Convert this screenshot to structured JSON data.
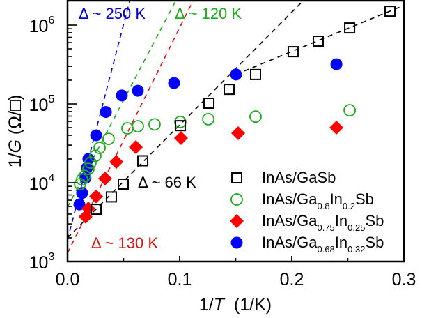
{
  "chart_data": {
    "type": "scatter",
    "title": "",
    "xlabel_prefix": "1/",
    "xlabel_var": "T",
    "xlabel_suffix": "  (1/K)",
    "ylabel_prefix": "1/",
    "ylabel_var": "G",
    "ylabel_suffix": " (Ω/□)",
    "xlim": [
      0.0,
      0.3
    ],
    "ylim": [
      1000,
      2000000
    ],
    "yscale": "log",
    "x_ticks": [
      0.0,
      0.1,
      0.2,
      0.3
    ],
    "x_tick_labels": [
      "0.0",
      "0.1",
      "0.2",
      "0.3"
    ],
    "x_minor_ticks": [
      0.05,
      0.15,
      0.25
    ],
    "y_ticks": [
      1000,
      10000,
      100000,
      1000000
    ],
    "y_tick_labels": [
      {
        "base": "10",
        "exp": "3"
      },
      {
        "base": "10",
        "exp": "4"
      },
      {
        "base": "10",
        "exp": "5"
      },
      {
        "base": "10",
        "exp": "6"
      }
    ],
    "grid": false,
    "legend_position": "bottom-right",
    "series": [
      {
        "name": "InAs/GaSb",
        "legend_parts": [
          {
            "t": "InAs/GaSb",
            "sub": false
          }
        ],
        "marker": "square-open",
        "color": "#000000",
        "points": [
          [
            0.0255,
            4600
          ],
          [
            0.0391,
            6600
          ],
          [
            0.0497,
            9600
          ],
          [
            0.0671,
            19000
          ],
          [
            0.1006,
            53000
          ],
          [
            0.1261,
            102000
          ],
          [
            0.1441,
            153000
          ],
          [
            0.1677,
            236000
          ],
          [
            0.2012,
            460000
          ],
          [
            0.2236,
            625000
          ],
          [
            0.2516,
            920000
          ],
          [
            0.2876,
            1500000
          ]
        ]
      },
      {
        "name": "InAs/Ga0.8In0.2Sb",
        "legend_parts": [
          {
            "t": "InAs/Ga",
            "sub": false
          },
          {
            "t": "0.8",
            "sub": true
          },
          {
            "t": "In",
            "sub": false
          },
          {
            "t": "0.2",
            "sub": true
          },
          {
            "t": "Sb",
            "sub": false
          }
        ],
        "marker": "circle-open",
        "color": "#1faa1f",
        "points": [
          [
            0.0112,
            9600
          ],
          [
            0.013,
            11000
          ],
          [
            0.0155,
            12200
          ],
          [
            0.0186,
            15000
          ],
          [
            0.0205,
            18000
          ],
          [
            0.0248,
            22000
          ],
          [
            0.0286,
            27700
          ],
          [
            0.0366,
            36000
          ],
          [
            0.0534,
            49000
          ],
          [
            0.0627,
            52000
          ],
          [
            0.0776,
            55000
          ],
          [
            0.1006,
            59000
          ],
          [
            0.1255,
            64000
          ],
          [
            0.1677,
            69000
          ],
          [
            0.2516,
            83000
          ]
        ]
      },
      {
        "name": "InAs/Ga0.75In0.25Sb",
        "legend_parts": [
          {
            "t": "InAs/Ga",
            "sub": false
          },
          {
            "t": "0.75",
            "sub": true
          },
          {
            "t": "In",
            "sub": false
          },
          {
            "t": "0.25",
            "sub": true
          },
          {
            "t": "Sb",
            "sub": false
          }
        ],
        "marker": "diamond-filled",
        "color": "#ff0000",
        "points": [
          [
            0.0161,
            3700
          ],
          [
            0.0186,
            4700
          ],
          [
            0.0255,
            6700
          ],
          [
            0.0335,
            11300
          ],
          [
            0.0435,
            18400
          ],
          [
            0.0609,
            28300
          ],
          [
            0.1012,
            36800
          ],
          [
            0.1522,
            42500
          ],
          [
            0.2398,
            50000
          ]
        ]
      },
      {
        "name": "InAs/Ga0.68In0.32Sb",
        "legend_parts": [
          {
            "t": "InAs/Ga",
            "sub": false
          },
          {
            "t": "0.68",
            "sub": true
          },
          {
            "t": "In",
            "sub": false
          },
          {
            "t": "0.32",
            "sub": true
          },
          {
            "t": "Sb",
            "sub": false
          }
        ],
        "marker": "circle-filled",
        "color": "#0000ff",
        "points": [
          [
            0.0106,
            5300
          ],
          [
            0.013,
            7400
          ],
          [
            0.016,
            11500
          ],
          [
            0.0174,
            15500
          ],
          [
            0.0186,
            20000
          ],
          [
            0.0255,
            40000
          ],
          [
            0.0342,
            79000
          ],
          [
            0.0484,
            128000
          ],
          [
            0.0627,
            147000
          ],
          [
            0.095,
            184000
          ],
          [
            0.1503,
            236000
          ],
          [
            0.2398,
            319000
          ]
        ]
      }
    ],
    "fit_lines": [
      {
        "name": "fit-250K",
        "color": "#0000cc",
        "from": [
          0.0,
          1900
        ],
        "to": [
          0.0553,
          2000000
        ]
      },
      {
        "name": "fit-120K",
        "color": "#1faa1f",
        "from": [
          0.0,
          4900
        ],
        "to": [
          0.097,
          2100000
        ]
      },
      {
        "name": "fit-130K",
        "color": "#dd1111",
        "from": [
          0.0,
          1280
        ],
        "to": [
          0.1124,
          2100000
        ]
      },
      {
        "name": "fit-66K",
        "color": "#000000",
        "from": [
          0.0,
          2000
        ],
        "to": [
          0.208,
          1900000
        ]
      },
      {
        "name": "fit-high-T-black",
        "color": "#000000",
        "from": [
          0.15,
          236000
        ],
        "to": [
          0.3,
          1780000
        ]
      }
    ],
    "annotations": [
      {
        "name": "annotation-250K",
        "delta": "Δ",
        "text": " ~ 250 K",
        "color": "#0000cc",
        "x": 0.0,
        "y": 1500000
      },
      {
        "name": "annotation-120K",
        "delta": "Δ",
        "text": " ~ 120 K",
        "color": "#1faa1f",
        "x": 0.0,
        "y": 1500000
      },
      {
        "name": "annotation-66K",
        "delta": "Δ",
        "text": " ~ 66 K",
        "color": "#000000",
        "x": 0.0,
        "y": 0
      },
      {
        "name": "annotation-130K",
        "delta": "Δ",
        "text": " ~ 130 K",
        "color": "#dd1111",
        "x": 0.0,
        "y": 0
      }
    ]
  }
}
